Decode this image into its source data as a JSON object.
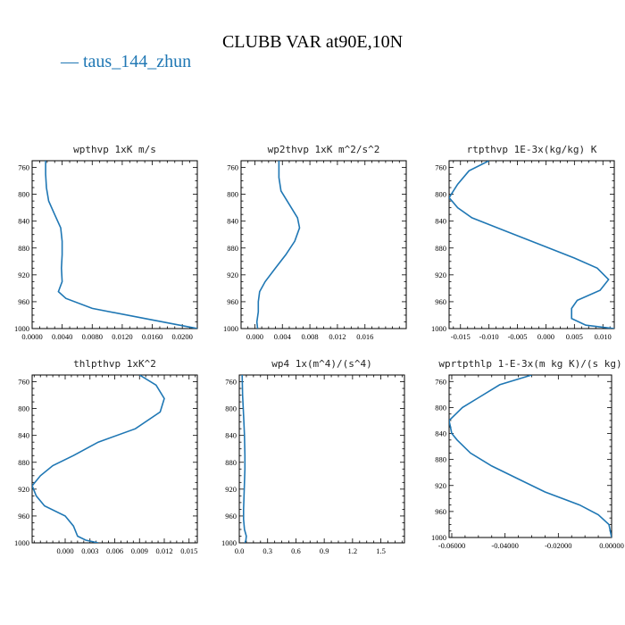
{
  "title": "CLUBB VAR at90E,10N",
  "legend": {
    "mark": "—",
    "label": "taus_144_zhun",
    "color": "#1f77b4"
  },
  "chart_data": [
    {
      "type": "line",
      "title": "wpthvp  1xK m/s",
      "xlim": [
        0,
        0.022
      ],
      "ylim": [
        750,
        1000
      ],
      "y_inverted": true,
      "xticks": [
        "0.0000",
        "0.0040",
        "0.0080",
        "0.0120",
        "0.0160",
        "0.0200"
      ],
      "xtick_values": [
        0,
        0.004,
        0.008,
        0.012,
        0.016,
        0.02
      ],
      "yticks": [
        760,
        800,
        840,
        880,
        920,
        960,
        1000
      ],
      "series": [
        {
          "color": "#1f77b4",
          "x": [
            0.0018,
            0.0018,
            0.0019,
            0.0022,
            0.003,
            0.0038,
            0.004,
            0.004,
            0.0039,
            0.004,
            0.0035,
            0.0045,
            0.008,
            0.015,
            0.022
          ],
          "y": [
            750,
            770,
            790,
            810,
            830,
            850,
            870,
            890,
            910,
            930,
            945,
            955,
            970,
            985,
            1000
          ]
        }
      ]
    },
    {
      "type": "line",
      "title": "wp2thvp  1xK m^2/s^2",
      "xlim": [
        -0.002,
        0.022
      ],
      "ylim": [
        750,
        1000
      ],
      "y_inverted": true,
      "xticks": [
        "0.000",
        "0.004",
        "0.008",
        "0.012",
        "0.016"
      ],
      "xtick_values": [
        0,
        0.004,
        0.008,
        0.012,
        0.016
      ],
      "yticks": [
        760,
        800,
        840,
        880,
        920,
        960,
        1000
      ],
      "series": [
        {
          "color": "#1f77b4",
          "x": [
            0.0035,
            0.0035,
            0.0038,
            0.005,
            0.0062,
            0.0065,
            0.0058,
            0.0045,
            0.003,
            0.0015,
            0.0007,
            0.0005,
            0.0005,
            0.0003,
            0.0004
          ],
          "y": [
            750,
            775,
            795,
            815,
            835,
            850,
            870,
            890,
            910,
            930,
            945,
            960,
            975,
            990,
            1000
          ]
        }
      ]
    },
    {
      "type": "line",
      "title": "rtpthvp  1E-3x(kg/kg) K",
      "xlim": [
        -0.017,
        0.012
      ],
      "ylim": [
        750,
        1000
      ],
      "y_inverted": true,
      "xticks": [
        "-0.015",
        "-0.010",
        "-0.005",
        "0.000",
        "0.005",
        "0.010"
      ],
      "xtick_values": [
        -0.015,
        -0.01,
        -0.005,
        0,
        0.005,
        0.01
      ],
      "yticks": [
        760,
        800,
        840,
        880,
        920,
        960,
        1000
      ],
      "series": [
        {
          "color": "#1f77b4",
          "x": [
            -0.01,
            -0.0135,
            -0.0155,
            -0.017,
            -0.0155,
            -0.013,
            -0.007,
            -0.001,
            0.005,
            0.009,
            0.011,
            0.0095,
            0.0055,
            0.0045,
            0.0045,
            0.007,
            0.012
          ],
          "y": [
            750,
            765,
            785,
            805,
            820,
            835,
            855,
            875,
            895,
            910,
            927,
            943,
            958,
            970,
            985,
            995,
            1000
          ]
        }
      ]
    },
    {
      "type": "line",
      "title": "thlpthvp  1xK^2",
      "xlim": [
        -0.004,
        0.016
      ],
      "ylim": [
        750,
        1000
      ],
      "y_inverted": true,
      "xticks": [
        "0.000",
        "0.003",
        "0.006",
        "0.009",
        "0.012",
        "0.015"
      ],
      "xtick_values": [
        0,
        0.003,
        0.006,
        0.009,
        0.012,
        0.015
      ],
      "yticks": [
        760,
        800,
        840,
        880,
        920,
        960,
        1000
      ],
      "series": [
        {
          "color": "#1f77b4",
          "x": [
            0.009,
            0.011,
            0.012,
            0.0115,
            0.0085,
            0.004,
            0.001,
            -0.0015,
            -0.003,
            -0.004,
            -0.0035,
            -0.0025,
            0.0,
            0.001,
            0.0015,
            0.0025,
            0.004
          ],
          "y": [
            750,
            765,
            785,
            805,
            830,
            850,
            870,
            885,
            900,
            915,
            930,
            945,
            960,
            975,
            990,
            996,
            1000
          ]
        }
      ]
    },
    {
      "type": "line",
      "title": "wp4  1x(m^4)/(s^4)",
      "xlim": [
        0,
        1.75
      ],
      "ylim": [
        750,
        1000
      ],
      "y_inverted": true,
      "xticks": [
        "0.0",
        "0.3",
        "0.6",
        "0.9",
        "1.2",
        "1.5"
      ],
      "xtick_values": [
        0,
        0.3,
        0.6,
        0.9,
        1.2,
        1.5
      ],
      "yticks": [
        760,
        800,
        840,
        880,
        920,
        960,
        1000
      ],
      "series": [
        {
          "color": "#1f77b4",
          "x": [
            0.03,
            0.035,
            0.045,
            0.055,
            0.06,
            0.06,
            0.055,
            0.05,
            0.045,
            0.045,
            0.055,
            0.075,
            0.07,
            0.06
          ],
          "y": [
            750,
            780,
            810,
            840,
            870,
            890,
            910,
            930,
            950,
            965,
            980,
            990,
            996,
            1000
          ]
        }
      ]
    },
    {
      "type": "line",
      "title": "wprtpthlp  1-E-3x(m kg K)/(s kg)",
      "xlim": [
        -0.061,
        0.0
      ],
      "ylim": [
        750,
        1000
      ],
      "y_inverted": true,
      "xticks": [
        "-0.06000",
        "-0.04000",
        "-0.02000",
        "0.00000"
      ],
      "xtick_values": [
        -0.06,
        -0.04,
        -0.02,
        0
      ],
      "yticks": [
        760,
        800,
        840,
        880,
        920,
        960,
        1000
      ],
      "series": [
        {
          "color": "#1f77b4",
          "x": [
            -0.03,
            -0.042,
            -0.05,
            -0.056,
            -0.061,
            -0.06,
            -0.058,
            -0.053,
            -0.045,
            -0.035,
            -0.025,
            -0.012,
            -0.005,
            -0.001,
            0.0
          ],
          "y": [
            750,
            765,
            785,
            800,
            820,
            840,
            850,
            870,
            890,
            910,
            930,
            950,
            965,
            980,
            1000
          ]
        }
      ]
    }
  ]
}
